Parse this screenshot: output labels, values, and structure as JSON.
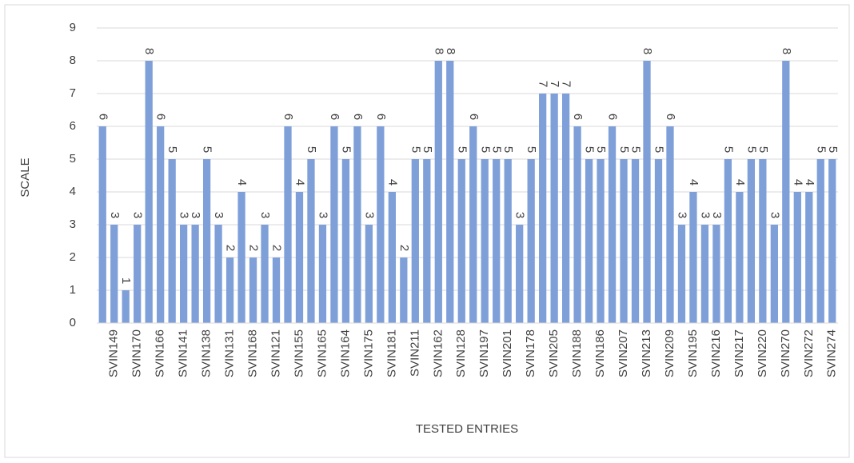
{
  "chart_data": {
    "type": "bar",
    "x_label": "TESTED ENTRIES",
    "y_label": "SCALE",
    "categories": [
      null,
      "SVIN149",
      null,
      "SVIN170",
      null,
      "SVIN166",
      null,
      "SVIN141",
      null,
      "SVIN138",
      null,
      "SVIN131",
      null,
      "SVIN168",
      null,
      "SVIN121",
      null,
      "SVIN155",
      null,
      "SVIN165",
      null,
      "SVIN164",
      null,
      "SVIN175",
      null,
      "SVIN181",
      null,
      "SVIN211",
      null,
      "SVIN162",
      null,
      "SVIN128",
      null,
      "SVIN197",
      null,
      "SVIN201",
      null,
      "SVIN178",
      null,
      "SVIN205",
      null,
      "SVIN188",
      null,
      "SVIN186",
      null,
      "SVIN207",
      null,
      "SVIN213",
      null,
      "SVIN209",
      null,
      "SVIN195",
      null,
      "SVIN216",
      null,
      "SVIN217",
      null,
      "SVIN220",
      null,
      "SVIN270",
      null,
      "SVIN272",
      null,
      "SVIN274"
    ],
    "values": [
      6,
      3,
      1,
      3,
      8,
      6,
      5,
      3,
      3,
      5,
      3,
      2,
      4,
      2,
      3,
      2,
      6,
      4,
      5,
      3,
      6,
      5,
      6,
      3,
      6,
      4,
      2,
      5,
      5,
      8,
      8,
      5,
      6,
      5,
      5,
      5,
      3,
      5,
      7,
      7,
      7,
      6,
      5,
      5,
      6,
      5,
      5,
      8,
      5,
      6,
      3,
      4,
      3,
      3,
      5,
      4,
      5,
      5,
      3,
      8,
      4,
      4,
      5,
      5
    ],
    "color": "#7f9fd9",
    "ylim": [
      0,
      9
    ],
    "yticks": [
      0,
      1,
      2,
      3,
      4,
      5,
      6,
      7,
      8,
      9
    ],
    "grid": true
  }
}
